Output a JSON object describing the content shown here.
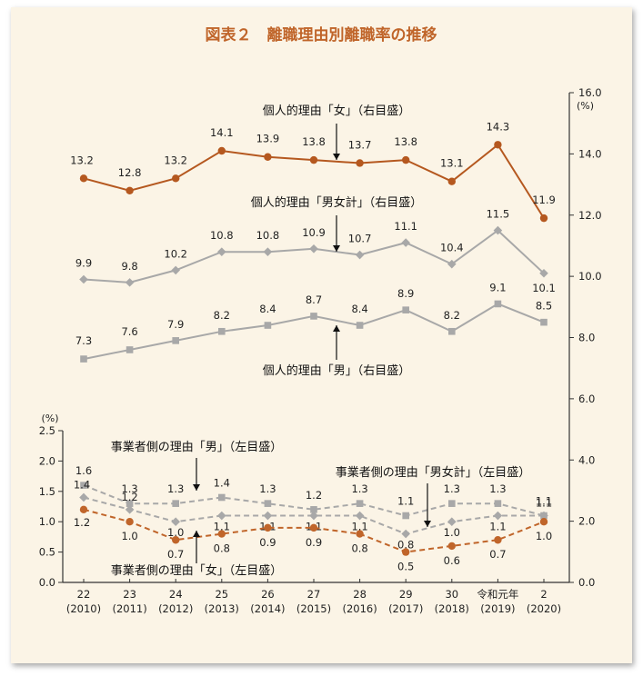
{
  "title": "図表２　離職理由別離職率の推移",
  "colors": {
    "female_personal": "#b5581f",
    "gray_line": "#a8a8a8",
    "male_personal": "#a8a8a8",
    "gray_dash": "#a8a8a8",
    "female_business": "#c0652a",
    "axis": "#333333",
    "background": "#fbf4e6"
  },
  "chart_data": {
    "type": "line",
    "title": "図表２　離職理由別離職率の推移",
    "categories": [
      [
        "22",
        "(2010)"
      ],
      [
        "23",
        "(2011)"
      ],
      [
        "24",
        "(2012)"
      ],
      [
        "25",
        "(2013)"
      ],
      [
        "26",
        "(2014)"
      ],
      [
        "27",
        "(2015)"
      ],
      [
        "28",
        "(2016)"
      ],
      [
        "29",
        "(2017)"
      ],
      [
        "30",
        "(2018)"
      ],
      [
        "令和元年",
        "(2019)"
      ],
      [
        "2",
        "(2020)"
      ]
    ],
    "right_axis": {
      "unit": "(%)",
      "ylim": [
        0,
        16
      ],
      "ticks": [
        "0.0",
        "2.0",
        "4.0",
        "6.0",
        "8.0",
        "10.0",
        "12.0",
        "14.0",
        "16.0"
      ]
    },
    "left_axis": {
      "unit": "(%)",
      "ylim": [
        0,
        2.5
      ],
      "ticks": [
        "0.0",
        "0.5",
        "1.0",
        "1.5",
        "2.0",
        "2.5"
      ]
    },
    "series": [
      {
        "name": "個人的理由「女」（右目盛）",
        "axis": "right",
        "style": "solid",
        "marker": "circle",
        "color_key": "female_personal",
        "values": [
          13.2,
          12.8,
          13.2,
          14.1,
          13.9,
          13.8,
          13.7,
          13.8,
          13.1,
          14.3,
          11.9
        ],
        "labels": [
          "13.2",
          "12.8",
          "13.2",
          "14.1",
          "13.9",
          "13.8",
          "13.7",
          "13.8",
          "13.1",
          "14.3",
          "11.9"
        ]
      },
      {
        "name": "個人的理由「男女計」（右目盛）",
        "axis": "right",
        "style": "solid",
        "marker": "diamond",
        "color_key": "gray_line",
        "values": [
          9.9,
          9.8,
          10.2,
          10.8,
          10.8,
          10.9,
          10.7,
          11.1,
          10.4,
          11.5,
          10.1
        ],
        "labels": [
          "9.9",
          "9.8",
          "10.2",
          "10.8",
          "10.8",
          "10.9",
          "10.7",
          "11.1",
          "10.4",
          "11.5",
          "10.1"
        ]
      },
      {
        "name": "個人的理由「男」（右目盛）",
        "axis": "right",
        "style": "solid",
        "marker": "square",
        "color_key": "male_personal",
        "values": [
          7.3,
          7.6,
          7.9,
          8.2,
          8.4,
          8.7,
          8.4,
          8.9,
          8.2,
          9.1,
          8.5
        ],
        "labels": [
          "7.3",
          "7.6",
          "7.9",
          "8.2",
          "8.4",
          "8.7",
          "8.4",
          "8.9",
          "8.2",
          "9.1",
          "8.5"
        ]
      },
      {
        "name": "事業者側の理由「男」（左目盛）",
        "axis": "left",
        "style": "dashed",
        "marker": "square",
        "color_key": "gray_dash",
        "values": [
          1.6,
          1.3,
          1.3,
          1.4,
          1.3,
          1.2,
          1.3,
          1.1,
          1.3,
          1.3,
          1.1
        ],
        "labels": [
          "1.6",
          "1.3",
          "1.3",
          "1.4",
          "1.3",
          "1.2",
          "1.3",
          "1.1",
          "1.3",
          "1.3",
          "1.1"
        ]
      },
      {
        "name": "事業者側の理由「男女計」（左目盛）",
        "axis": "left",
        "style": "dashed",
        "marker": "diamond",
        "color_key": "gray_dash",
        "values": [
          1.4,
          1.2,
          1.0,
          1.1,
          1.1,
          1.1,
          1.1,
          0.8,
          1.0,
          1.1,
          1.1
        ],
        "labels": [
          "1.4",
          "1.2",
          "1.0",
          "1.1",
          "1.1",
          "1.1",
          "1.1",
          "0.8",
          "1.0",
          "1.1",
          "1.1"
        ]
      },
      {
        "name": "事業者側の理由「女」（左目盛）",
        "axis": "left",
        "style": "dashed",
        "marker": "circle",
        "color_key": "female_business",
        "values": [
          1.2,
          1.0,
          0.7,
          0.8,
          0.9,
          0.9,
          0.8,
          0.5,
          0.6,
          0.7,
          1.0
        ],
        "labels": [
          "1.2",
          "1.0",
          "0.7",
          "0.8",
          "0.9",
          "0.9",
          "0.8",
          "0.5",
          "0.6",
          "0.7",
          "1.0"
        ]
      }
    ],
    "annotations": [
      "個人的理由「女」（右目盛）",
      "個人的理由「男女計」（右目盛）",
      "個人的理由「男」（右目盛）",
      "事業者側の理由「男」（左目盛）",
      "事業者側の理由「男女計」（左目盛）",
      "事業者側の理由「女」（左目盛）"
    ]
  }
}
